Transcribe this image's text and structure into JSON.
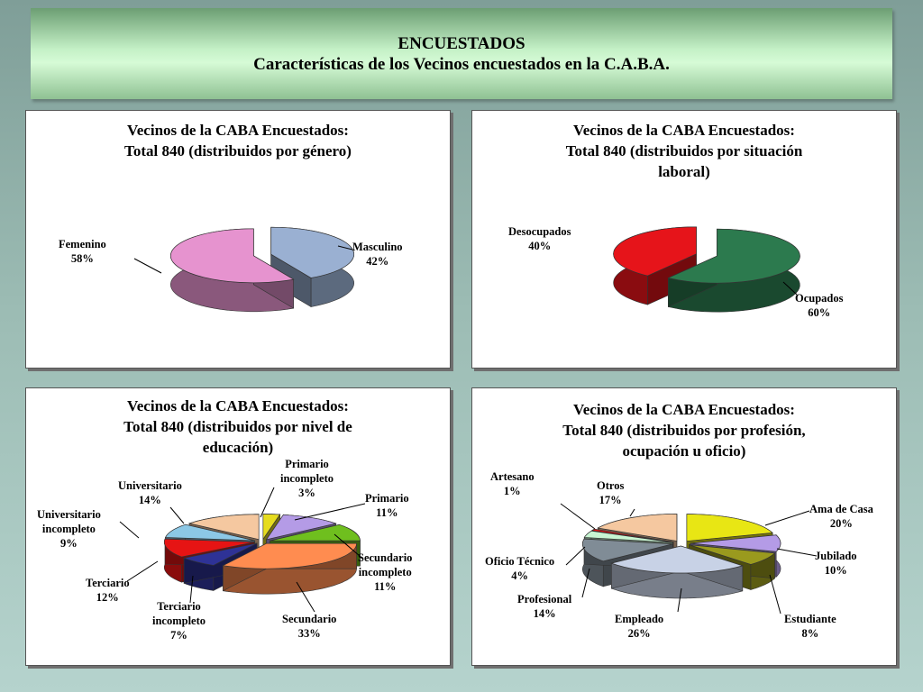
{
  "header": {
    "line1": "ENCUESTADOS",
    "line2": "Características de los Vecinos encuestados en la C.A.B.A."
  },
  "chart_data": [
    {
      "type": "pie",
      "title_lines": [
        "Vecinos de la CABA Encuestados:",
        "Total 840 (distribuidos por género)"
      ],
      "slices": [
        {
          "name": "Masculino",
          "value": 42,
          "label": "42%",
          "color": "#9ab0d2"
        },
        {
          "name": "Femenino",
          "value": 58,
          "label": "58%",
          "color": "#e693cf"
        }
      ]
    },
    {
      "type": "pie",
      "title_lines": [
        "Vecinos de la CABA Encuestados:",
        "Total 840 (distribuidos por situación",
        "laboral)"
      ],
      "slices": [
        {
          "name": "Ocupados",
          "value": 60,
          "label": "60%",
          "color": "#2c7a4e"
        },
        {
          "name": "Desocupados",
          "value": 40,
          "label": "40%",
          "color": "#e6141a"
        }
      ]
    },
    {
      "type": "pie",
      "title_lines": [
        "Vecinos de la CABA Encuestados:",
        "Total 840 (distribuidos por nivel de",
        "educación)"
      ],
      "slices": [
        {
          "name": "Primario incompleto",
          "value": 3,
          "label": "3%",
          "color": "#e6dc1e"
        },
        {
          "name": "Primario",
          "value": 11,
          "label": "11%",
          "color": "#b49be6"
        },
        {
          "name": "Secundario incompleto",
          "value": 11,
          "label": "11%",
          "color": "#6fbf1e"
        },
        {
          "name": "Secundario",
          "value": 33,
          "label": "33%",
          "color": "#ff8c50"
        },
        {
          "name": "Terciario incompleto",
          "value": 7,
          "label": "7%",
          "color": "#2e3296"
        },
        {
          "name": "Terciario",
          "value": 12,
          "label": "12%",
          "color": "#e61414"
        },
        {
          "name": "Universitario incompleto",
          "value": 9,
          "label": "9%",
          "color": "#8cc8e6"
        },
        {
          "name": "Universitario",
          "value": 14,
          "label": "14%",
          "color": "#f5c8a0"
        }
      ]
    },
    {
      "type": "pie",
      "title_lines": [
        "Vecinos de la CABA Encuestados:",
        "Total 840 (distribuidos por profesión,",
        "ocupación u oficio)"
      ],
      "slices": [
        {
          "name": "Ama de Casa",
          "value": 20,
          "label": "20%",
          "color": "#e8e614"
        },
        {
          "name": "Jubilado",
          "value": 10,
          "label": "10%",
          "color": "#b49be6"
        },
        {
          "name": "Estudiante",
          "value": 8,
          "label": "8%",
          "color": "#9a9a1e"
        },
        {
          "name": "Empleado",
          "value": 26,
          "label": "26%",
          "color": "#c8d2e6"
        },
        {
          "name": "Profesional",
          "value": 14,
          "label": "14%",
          "color": "#808c96"
        },
        {
          "name": "Oficio Técnico",
          "value": 4,
          "label": "4%",
          "color": "#c8f5d2"
        },
        {
          "name": "Artesano",
          "value": 1,
          "label": "1%",
          "color": "#e61414"
        },
        {
          "name": "Otros",
          "value": 17,
          "label": "17%",
          "color": "#f5c8a0"
        }
      ]
    }
  ]
}
